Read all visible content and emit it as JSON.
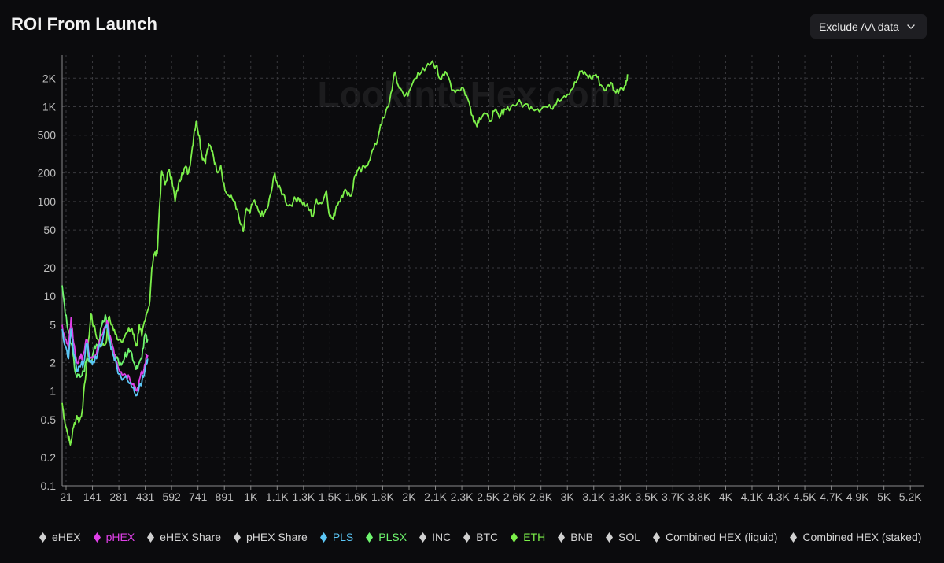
{
  "header": {
    "title": "ROI From Launch"
  },
  "toolbar": {
    "filter_label": "Exclude AA data",
    "filter_icon": "chevron-down-icon"
  },
  "watermark": "LookIntoHex.com",
  "legend": [
    {
      "label": "eHEX",
      "color": "#d0d0d0",
      "active": false
    },
    {
      "label": "pHEX",
      "color": "#e040e8",
      "active": true
    },
    {
      "label": "eHEX Share",
      "color": "#d0d0d0",
      "active": false
    },
    {
      "label": "pHEX Share",
      "color": "#d0d0d0",
      "active": false
    },
    {
      "label": "PLS",
      "color": "#5bc6f5",
      "active": true
    },
    {
      "label": "PLSX",
      "color": "#6ef56e",
      "active": true
    },
    {
      "label": "INC",
      "color": "#d0d0d0",
      "active": false
    },
    {
      "label": "BTC",
      "color": "#d0d0d0",
      "active": false
    },
    {
      "label": "ETH",
      "color": "#7cf04a",
      "active": true
    },
    {
      "label": "BNB",
      "color": "#d0d0d0",
      "active": false
    },
    {
      "label": "SOL",
      "color": "#d0d0d0",
      "active": false
    },
    {
      "label": "Combined HEX (liquid)",
      "color": "#d0d0d0",
      "active": false
    },
    {
      "label": "Combined HEX (staked)",
      "color": "#d0d0d0",
      "active": false
    }
  ],
  "chart_data": {
    "type": "line",
    "title": "ROI From Launch",
    "x_ticks": [
      "21",
      "141",
      "281",
      "431",
      "592",
      "741",
      "891",
      "1K",
      "1.1K",
      "1.3K",
      "1.5K",
      "1.6K",
      "1.8K",
      "2K",
      "2.1K",
      "2.3K",
      "2.5K",
      "2.6K",
      "2.8K",
      "3K",
      "3.1K",
      "3.3K",
      "3.5K",
      "3.7K",
      "3.8K",
      "4K",
      "4.1K",
      "4.3K",
      "4.5K",
      "4.7K",
      "4.9K",
      "5K",
      "5.2K"
    ],
    "x_range": [
      21,
      5200
    ],
    "y_scale": "log",
    "y_ticks": [
      {
        "value": 0.1,
        "label": "0.1"
      },
      {
        "value": 0.2,
        "label": "0.2"
      },
      {
        "value": 0.5,
        "label": "0.5"
      },
      {
        "value": 1,
        "label": "1"
      },
      {
        "value": 2,
        "label": "2"
      },
      {
        "value": 5,
        "label": "5"
      },
      {
        "value": 10,
        "label": "10"
      },
      {
        "value": 20,
        "label": "20"
      },
      {
        "value": 50,
        "label": "50"
      },
      {
        "value": 100,
        "label": "100"
      },
      {
        "value": 200,
        "label": "200"
      },
      {
        "value": 500,
        "label": "500"
      },
      {
        "value": 1000,
        "label": "1K"
      },
      {
        "value": 2000,
        "label": "2K"
      }
    ],
    "y_range": [
      0.1,
      3500
    ],
    "grid": true,
    "legend_position": "bottom",
    "series": [
      {
        "name": "ETH",
        "color": "#7cf04a",
        "points": [
          [
            21,
            0.75
          ],
          [
            35,
            0.5
          ],
          [
            55,
            0.35
          ],
          [
            70,
            0.27
          ],
          [
            90,
            0.42
          ],
          [
            110,
            0.55
          ],
          [
            125,
            0.48
          ],
          [
            140,
            0.6
          ],
          [
            160,
            1.3
          ],
          [
            180,
            3.5
          ],
          [
            195,
            6.5
          ],
          [
            210,
            4.8
          ],
          [
            235,
            3.5
          ],
          [
            260,
            3.0
          ],
          [
            285,
            3.2
          ],
          [
            300,
            6.0
          ],
          [
            320,
            5.0
          ],
          [
            340,
            4.0
          ],
          [
            365,
            3.5
          ],
          [
            390,
            3.6
          ],
          [
            415,
            4.2
          ],
          [
            440,
            4.6
          ],
          [
            455,
            3.5
          ],
          [
            470,
            3.0
          ],
          [
            485,
            5.0
          ],
          [
            500,
            3.8
          ],
          [
            520,
            5.5
          ],
          [
            545,
            8.0
          ],
          [
            560,
            20
          ],
          [
            575,
            28
          ],
          [
            592,
            28
          ],
          [
            605,
            80
          ],
          [
            620,
            210
          ],
          [
            640,
            150
          ],
          [
            660,
            210
          ],
          [
            680,
            180
          ],
          [
            700,
            100
          ],
          [
            720,
            150
          ],
          [
            741,
            200
          ],
          [
            760,
            230
          ],
          [
            780,
            200
          ],
          [
            800,
            330
          ],
          [
            815,
            550
          ],
          [
            830,
            700
          ],
          [
            845,
            500
          ],
          [
            860,
            310
          ],
          [
            880,
            260
          ],
          [
            891,
            330
          ],
          [
            905,
            390
          ],
          [
            925,
            340
          ],
          [
            950,
            210
          ],
          [
            975,
            240
          ],
          [
            1000,
            130
          ],
          [
            1030,
            110
          ],
          [
            1060,
            100
          ],
          [
            1090,
            60
          ],
          [
            1110,
            48
          ],
          [
            1130,
            85
          ],
          [
            1150,
            75
          ],
          [
            1170,
            100
          ],
          [
            1200,
            80
          ],
          [
            1230,
            70
          ],
          [
            1260,
            90
          ],
          [
            1280,
            130
          ],
          [
            1300,
            200
          ],
          [
            1320,
            140
          ],
          [
            1350,
            120
          ],
          [
            1380,
            90
          ],
          [
            1410,
            100
          ],
          [
            1440,
            110
          ],
          [
            1460,
            100
          ],
          [
            1490,
            90
          ],
          [
            1510,
            80
          ],
          [
            1530,
            70
          ],
          [
            1550,
            105
          ],
          [
            1580,
            95
          ],
          [
            1610,
            130
          ],
          [
            1630,
            70
          ],
          [
            1650,
            65
          ],
          [
            1670,
            90
          ],
          [
            1700,
            115
          ],
          [
            1730,
            130
          ],
          [
            1760,
            115
          ],
          [
            1780,
            185
          ],
          [
            1800,
            215
          ],
          [
            1820,
            210
          ],
          [
            1850,
            240
          ],
          [
            1880,
            320
          ],
          [
            1910,
            400
          ],
          [
            1935,
            650
          ],
          [
            1960,
            780
          ],
          [
            1990,
            1150
          ],
          [
            2020,
            2300
          ],
          [
            2040,
            1700
          ],
          [
            2070,
            1400
          ],
          [
            2100,
            1300
          ],
          [
            2130,
            1800
          ],
          [
            2160,
            2300
          ],
          [
            2200,
            2400
          ],
          [
            2240,
            2900
          ],
          [
            2270,
            2700
          ],
          [
            2290,
            2000
          ],
          [
            2310,
            2200
          ],
          [
            2340,
            2100
          ],
          [
            2370,
            1500
          ],
          [
            2400,
            1500
          ],
          [
            2430,
            1600
          ],
          [
            2460,
            1200
          ],
          [
            2490,
            800
          ],
          [
            2510,
            650
          ],
          [
            2530,
            760
          ],
          [
            2560,
            860
          ],
          [
            2590,
            700
          ],
          [
            2620,
            900
          ],
          [
            2650,
            760
          ],
          [
            2680,
            950
          ],
          [
            2720,
            1000
          ],
          [
            2760,
            1100
          ],
          [
            2800,
            1050
          ],
          [
            2840,
            1000
          ],
          [
            2880,
            950
          ],
          [
            2920,
            1000
          ],
          [
            2960,
            960
          ],
          [
            3000,
            1200
          ],
          [
            3040,
            1300
          ],
          [
            3080,
            1500
          ],
          [
            3110,
            1800
          ],
          [
            3140,
            2350
          ],
          [
            3170,
            2200
          ],
          [
            3200,
            2000
          ],
          [
            3230,
            2200
          ],
          [
            3260,
            1700
          ],
          [
            3290,
            1500
          ],
          [
            3320,
            1800
          ],
          [
            3350,
            1400
          ],
          [
            3380,
            1600
          ],
          [
            3410,
            1700
          ],
          [
            3420,
            2200
          ]
        ]
      },
      {
        "name": "PLSX",
        "color": "#6ef56e",
        "points": [
          [
            21,
            13
          ],
          [
            35,
            8
          ],
          [
            55,
            4.5
          ],
          [
            75,
            3.2
          ],
          [
            95,
            1.8
          ],
          [
            110,
            1.4
          ],
          [
            130,
            1.4
          ],
          [
            150,
            1.6
          ],
          [
            170,
            2.2
          ],
          [
            195,
            2.0
          ],
          [
            215,
            3.0
          ],
          [
            240,
            3.2
          ],
          [
            265,
            5.5
          ],
          [
            285,
            6.0
          ],
          [
            300,
            3.5
          ],
          [
            320,
            2.8
          ],
          [
            345,
            2.2
          ],
          [
            370,
            2.0
          ],
          [
            395,
            2.2
          ],
          [
            420,
            2.8
          ],
          [
            440,
            2.5
          ],
          [
            460,
            1.8
          ],
          [
            480,
            1.9
          ],
          [
            500,
            2.2
          ],
          [
            520,
            4.0
          ],
          [
            535,
            3.5
          ]
        ]
      },
      {
        "name": "pHEX",
        "color": "#e040e8",
        "points": [
          [
            21,
            5.0
          ],
          [
            40,
            3.5
          ],
          [
            60,
            2.8
          ],
          [
            75,
            6.0
          ],
          [
            90,
            3.2
          ],
          [
            110,
            2.0
          ],
          [
            130,
            2.2
          ],
          [
            150,
            2.5
          ],
          [
            170,
            3.5
          ],
          [
            190,
            2.2
          ],
          [
            215,
            2.2
          ],
          [
            240,
            3.0
          ],
          [
            265,
            4.0
          ],
          [
            290,
            5.5
          ],
          [
            310,
            3.8
          ],
          [
            330,
            2.8
          ],
          [
            350,
            2.0
          ],
          [
            375,
            1.6
          ],
          [
            400,
            1.5
          ],
          [
            425,
            1.4
          ],
          [
            450,
            1.2
          ],
          [
            470,
            1.0
          ],
          [
            490,
            1.4
          ],
          [
            510,
            1.6
          ],
          [
            525,
            2.2
          ],
          [
            535,
            2.4
          ]
        ]
      },
      {
        "name": "PLS",
        "color": "#5bc6f5",
        "points": [
          [
            21,
            4.5
          ],
          [
            40,
            3.0
          ],
          [
            60,
            2.2
          ],
          [
            75,
            4.5
          ],
          [
            90,
            2.5
          ],
          [
            110,
            1.6
          ],
          [
            130,
            1.8
          ],
          [
            150,
            2.0
          ],
          [
            170,
            3.2
          ],
          [
            190,
            2.0
          ],
          [
            215,
            2.0
          ],
          [
            240,
            2.8
          ],
          [
            265,
            3.5
          ],
          [
            290,
            5.0
          ],
          [
            310,
            3.2
          ],
          [
            330,
            2.4
          ],
          [
            350,
            1.8
          ],
          [
            375,
            1.4
          ],
          [
            400,
            1.4
          ],
          [
            425,
            1.2
          ],
          [
            450,
            1.1
          ],
          [
            470,
            0.9
          ],
          [
            490,
            1.2
          ],
          [
            510,
            1.4
          ],
          [
            525,
            1.9
          ],
          [
            535,
            2.2
          ]
        ]
      }
    ]
  }
}
